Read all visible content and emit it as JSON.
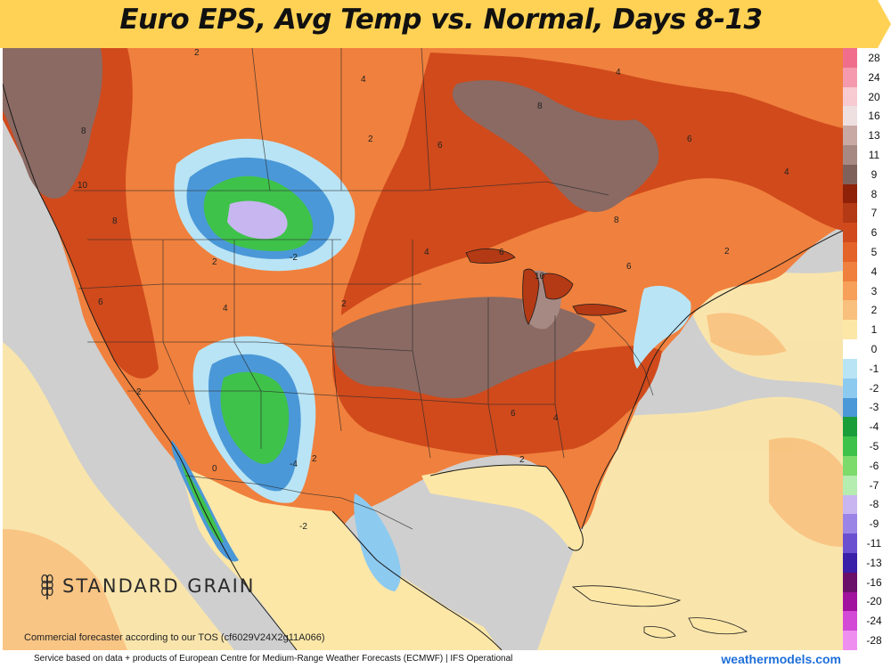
{
  "title": "Euro EPS, Avg Temp vs. Normal, Days 8-13",
  "colors": {
    "banner": "#ffd255",
    "banner_edge": "#ffe9a8",
    "ocean": "#cfcfcf",
    "brown": "#8a6a63",
    "dark_red": "#b33a14",
    "red": "#dc4d1f",
    "orange": "#f38c4a",
    "light_orange": "#f8c07a",
    "pale_yellow": "#fde7a7",
    "light_blue": "#a9dcf2",
    "blue": "#4a98d8",
    "green": "#3fc24a",
    "lavender": "#c8b6f0",
    "border": "#2b2b2b"
  },
  "legend": [
    {
      "label": "28",
      "color": "#f06e8c"
    },
    {
      "label": "24",
      "color": "#f59aae"
    },
    {
      "label": "20",
      "color": "#f7c9d1"
    },
    {
      "label": "16",
      "color": "#eee0e0"
    },
    {
      "label": "13",
      "color": "#c9a9a4"
    },
    {
      "label": "11",
      "color": "#a78983"
    },
    {
      "label": "9",
      "color": "#7f615b"
    },
    {
      "label": "8",
      "color": "#8e2108"
    },
    {
      "label": "7",
      "color": "#b33a14"
    },
    {
      "label": "6",
      "color": "#d04a1c"
    },
    {
      "label": "5",
      "color": "#e36329"
    },
    {
      "label": "4",
      "color": "#f0803d"
    },
    {
      "label": "3",
      "color": "#f6a05a"
    },
    {
      "label": "2",
      "color": "#f9bf7c"
    },
    {
      "label": "1",
      "color": "#fde7a7"
    },
    {
      "label": "0",
      "color": "#ffffff"
    },
    {
      "label": "-1",
      "color": "#b9e4f5"
    },
    {
      "label": "-2",
      "color": "#8dcaf0"
    },
    {
      "label": "-3",
      "color": "#4a98d8"
    },
    {
      "label": "-4",
      "color": "#1a9e3a"
    },
    {
      "label": "-5",
      "color": "#3fc24a"
    },
    {
      "label": "-6",
      "color": "#7ddb6b"
    },
    {
      "label": "-7",
      "color": "#b5ecb0"
    },
    {
      "label": "-8",
      "color": "#c8b6f0"
    },
    {
      "label": "-9",
      "color": "#9a84e6"
    },
    {
      "label": "-11",
      "color": "#6a4fd0"
    },
    {
      "label": "-13",
      "color": "#3a1fa8"
    },
    {
      "label": "-16",
      "color": "#6a0f6a"
    },
    {
      "label": "-20",
      "color": "#a1139e"
    },
    {
      "label": "-24",
      "color": "#d24ad6"
    },
    {
      "label": "-28",
      "color": "#ee8ff0"
    }
  ],
  "map_labels": [
    {
      "text": "2"
    },
    {
      "text": "4"
    },
    {
      "text": "4"
    },
    {
      "text": "8"
    },
    {
      "text": "2"
    },
    {
      "text": "6"
    },
    {
      "text": "6"
    },
    {
      "text": "10"
    },
    {
      "text": "8"
    },
    {
      "text": "8"
    },
    {
      "text": "2"
    },
    {
      "text": "-2"
    },
    {
      "text": "4"
    },
    {
      "text": "4"
    },
    {
      "text": "6"
    },
    {
      "text": "10"
    },
    {
      "text": "6"
    },
    {
      "text": "2"
    },
    {
      "text": "6"
    },
    {
      "text": "2"
    },
    {
      "text": "6"
    },
    {
      "text": "4"
    },
    {
      "text": "2"
    },
    {
      "text": "-4"
    },
    {
      "text": "2"
    },
    {
      "text": "-2"
    },
    {
      "text": "0"
    },
    {
      "text": "4"
    },
    {
      "text": "8"
    },
    {
      "text": "2"
    }
  ],
  "watermark": "STANDARD GRAIN",
  "tos_note": "Commercial forecaster according to our TOS (cf6029V24X2g11A066)",
  "footer_credit": "Service based on data + products of European Centre for Medium-Range Weather Forecasts (ECMWF) | IFS Operational",
  "footer_site": "weathermodels.com"
}
